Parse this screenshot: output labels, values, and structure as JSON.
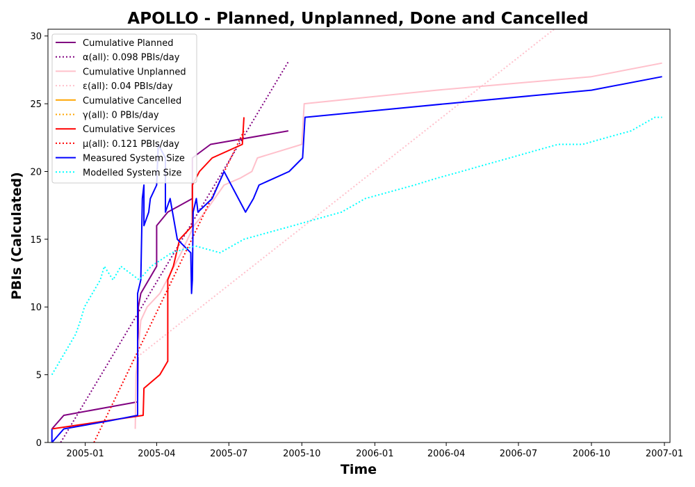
{
  "chart_data": {
    "type": "line",
    "title": "APOLLO - Planned, Unplanned, Done  and Cancelled",
    "xlabel": "Time",
    "ylabel": "PBIs (Calculated)",
    "xlim": [
      "2004-11-15",
      "2007-01-08"
    ],
    "ylim": [
      0,
      30.5
    ],
    "x_ticks": [
      "2005-01",
      "2005-04",
      "2005-07",
      "2005-10",
      "2006-01",
      "2006-04",
      "2006-07",
      "2006-10",
      "2007-01"
    ],
    "y_ticks": [
      0,
      5,
      10,
      15,
      20,
      25,
      30
    ],
    "grid": false,
    "legend_position": "top-left",
    "series": [
      {
        "name": "Cumulative Planned",
        "color": "#800080",
        "style": "solid",
        "points": [
          [
            "2004-11-20",
            1
          ],
          [
            "2004-12-05",
            2
          ],
          [
            "2005-03-08",
            3
          ],
          [
            "2005-03-09",
            10
          ],
          [
            "2005-03-12",
            11
          ],
          [
            "2005-04-01",
            13
          ],
          [
            "2005-04-01",
            16
          ],
          [
            "2005-04-15",
            17
          ],
          [
            "2005-05-16",
            18
          ],
          [
            "2005-05-16",
            21
          ],
          [
            "2005-06-08",
            22
          ],
          [
            "2005-09-14",
            23
          ]
        ]
      },
      {
        "name": "α(all): 0.098 PBIs/day",
        "color": "#800080",
        "style": "dotted",
        "points": [
          [
            "2004-12-01",
            0
          ],
          [
            "2005-09-14",
            28.1
          ]
        ]
      },
      {
        "name": "Cumulative Unplanned",
        "color": "#ffc0cb",
        "style": "solid",
        "points": [
          [
            "2005-03-05",
            1
          ],
          [
            "2005-03-06",
            5
          ],
          [
            "2005-03-12",
            9
          ],
          [
            "2005-03-20",
            10
          ],
          [
            "2005-04-05",
            11
          ],
          [
            "2005-05-02",
            14
          ],
          [
            "2005-05-18",
            16
          ],
          [
            "2005-06-01",
            17
          ],
          [
            "2005-06-25",
            19
          ],
          [
            "2005-07-15",
            19.5
          ],
          [
            "2005-07-30",
            20
          ],
          [
            "2005-08-06",
            21
          ],
          [
            "2005-10-01",
            22
          ],
          [
            "2005-10-04",
            25
          ],
          [
            "2006-03-20",
            26
          ],
          [
            "2006-10-01",
            27
          ],
          [
            "2006-12-29",
            28
          ]
        ]
      },
      {
        "name": "ε(all): 0.04 PBIs/day",
        "color": "#ffc0cb",
        "style": "dotted",
        "points": [
          [
            "2005-03-01",
            6
          ],
          [
            "2006-08-15",
            30.5
          ]
        ]
      },
      {
        "name": "Cumulative Cancelled",
        "color": "#ffa500",
        "style": "solid",
        "points": []
      },
      {
        "name": "γ(all): 0 PBIs/day",
        "color": "#ffa500",
        "style": "dotted",
        "points": []
      },
      {
        "name": "Cumulative Services",
        "color": "#ff0000",
        "style": "solid",
        "points": [
          [
            "2004-11-20",
            1
          ],
          [
            "2005-03-15",
            2
          ],
          [
            "2005-03-16",
            4
          ],
          [
            "2005-04-05",
            5
          ],
          [
            "2005-04-15",
            6
          ],
          [
            "2005-04-15",
            12
          ],
          [
            "2005-04-22",
            13
          ],
          [
            "2005-04-30",
            15
          ],
          [
            "2005-05-16",
            16
          ],
          [
            "2005-05-16",
            19
          ],
          [
            "2005-05-25",
            20
          ],
          [
            "2005-06-10",
            21
          ],
          [
            "2005-07-18",
            22
          ],
          [
            "2005-07-20",
            24
          ]
        ]
      },
      {
        "name": "μ(all): 0.121 PBIs/day",
        "color": "#ff0000",
        "style": "dotted",
        "points": [
          [
            "2005-01-12",
            0
          ],
          [
            "2005-07-20",
            23
          ]
        ]
      },
      {
        "name": "Measured System Size",
        "color": "#0000ff",
        "style": "solid",
        "points": [
          [
            "2004-11-20",
            1
          ],
          [
            "2004-11-20",
            0
          ],
          [
            "2004-12-05",
            1
          ],
          [
            "2005-02-01",
            1.6
          ],
          [
            "2005-03-08",
            2
          ],
          [
            "2005-03-08",
            11
          ],
          [
            "2005-03-12",
            12
          ],
          [
            "2005-03-14",
            18
          ],
          [
            "2005-03-16",
            19
          ],
          [
            "2005-03-16",
            16
          ],
          [
            "2005-03-22",
            17
          ],
          [
            "2005-03-24",
            18
          ],
          [
            "2005-04-01",
            19
          ],
          [
            "2005-04-03",
            22
          ],
          [
            "2005-04-12",
            21
          ],
          [
            "2005-04-12",
            17
          ],
          [
            "2005-04-18",
            18
          ],
          [
            "2005-04-27",
            15
          ],
          [
            "2005-05-14",
            14
          ],
          [
            "2005-05-15",
            11
          ],
          [
            "2005-05-16",
            12
          ],
          [
            "2005-05-17",
            17
          ],
          [
            "2005-05-21",
            18
          ],
          [
            "2005-05-23",
            17
          ],
          [
            "2005-06-10",
            18
          ],
          [
            "2005-06-25",
            20
          ],
          [
            "2005-07-22",
            17
          ],
          [
            "2005-08-01",
            18
          ],
          [
            "2005-08-08",
            19
          ],
          [
            "2005-09-15",
            20
          ],
          [
            "2005-10-02",
            21
          ],
          [
            "2005-10-04",
            23
          ],
          [
            "2005-10-05",
            24
          ],
          [
            "2006-04-01",
            25
          ],
          [
            "2006-10-01",
            26
          ],
          [
            "2006-12-29",
            27
          ]
        ]
      },
      {
        "name": "Modelled System Size",
        "color": "#00ffff",
        "style": "dotted",
        "points": [
          [
            "2004-11-20",
            5
          ],
          [
            "2004-11-30",
            6
          ],
          [
            "2004-12-10",
            7
          ],
          [
            "2004-12-20",
            8
          ],
          [
            "2004-12-26",
            9
          ],
          [
            "2004-12-31",
            10
          ],
          [
            "2005-01-10",
            11
          ],
          [
            "2005-01-20",
            12
          ],
          [
            "2005-01-25",
            13
          ],
          [
            "2005-02-05",
            12
          ],
          [
            "2005-02-15",
            13
          ],
          [
            "2005-03-10",
            12
          ],
          [
            "2005-03-25",
            13
          ],
          [
            "2005-04-20",
            14
          ],
          [
            "2005-05-20",
            14.5
          ],
          [
            "2005-06-20",
            14
          ],
          [
            "2005-07-20",
            15
          ],
          [
            "2005-08-20",
            15.5
          ],
          [
            "2005-09-20",
            16
          ],
          [
            "2005-10-20",
            16.5
          ],
          [
            "2005-11-20",
            17
          ],
          [
            "2005-12-20",
            18
          ],
          [
            "2006-01-20",
            18.5
          ],
          [
            "2006-02-20",
            19
          ],
          [
            "2006-03-20",
            19.5
          ],
          [
            "2006-04-20",
            20
          ],
          [
            "2006-05-20",
            20.5
          ],
          [
            "2006-06-20",
            21
          ],
          [
            "2006-07-20",
            21.5
          ],
          [
            "2006-08-20",
            22
          ],
          [
            "2006-09-20",
            22
          ],
          [
            "2006-10-20",
            22.5
          ],
          [
            "2006-11-20",
            23
          ],
          [
            "2006-12-20",
            24
          ],
          [
            "2006-12-29",
            24
          ]
        ]
      }
    ]
  }
}
